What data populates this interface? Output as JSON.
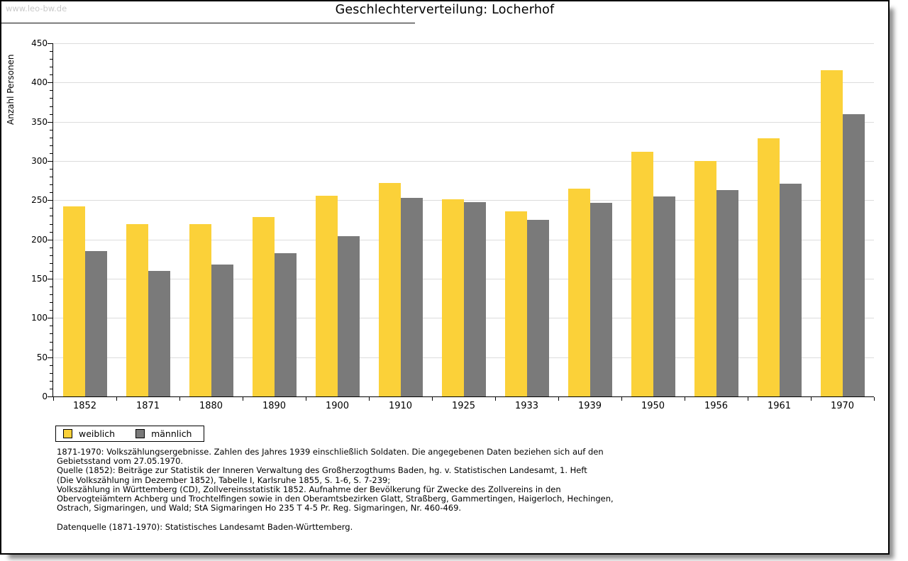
{
  "page": {
    "watermark": "www.leo-bw.de",
    "title": "Geschlechterverteilung: Locherhof"
  },
  "colors": {
    "weiblich": "#FBD139",
    "maennlich": "#7A7A7A",
    "gridline": "#DCDCDC",
    "axis": "#000000",
    "watermark": "#C9C9C9"
  },
  "legend": {
    "items": [
      {
        "label": "weiblich",
        "color": "#FBD139"
      },
      {
        "label": "männlich",
        "color": "#7A7A7A"
      }
    ]
  },
  "footnotes": [
    "1871-1970: Volkszählungsergebnisse. Zahlen des Jahres 1939 einschließlich Soldaten. Die angegebenen Daten beziehen sich auf den",
    "Gebietsstand vom 27.05.1970.",
    "Quelle (1852): Beiträge zur Statistik der Inneren Verwaltung des Großherzogthums Baden, hg. v. Statistischen Landesamt, 1. Heft",
    "(Die Volkszählung im Dezember 1852), Tabelle I, Karlsruhe 1855, S. 1-6, S. 7-239;",
    "Volkszählung in Württemberg (CD), Zollvereinsstatistik 1852. Aufnahme der Bevölkerung für Zwecke des Zollvereins in den",
    "Obervogteiämtern Achberg und Trochtelfingen sowie in den Oberamtsbezirken Glatt, Straßberg, Gammertingen, Haigerloch, Hechingen,",
    "Ostrach, Sigmaringen, und Wald; StA Sigmaringen Ho 235 T 4-5 Pr. Reg. Sigmaringen, Nr. 460-469.",
    "",
    "Datenquelle (1871-1970): Statistisches Landesamt Baden-Württemberg."
  ],
  "chart_data": {
    "type": "bar",
    "title": "Geschlechterverteilung: Locherhof",
    "xlabel": "",
    "ylabel": "Anzahl Personen",
    "ylim": [
      0,
      450
    ],
    "ytick_step": 50,
    "ytick_minor": 10,
    "grid": true,
    "legend_position": "bottom-left",
    "categories": [
      "1852",
      "1871",
      "1880",
      "1890",
      "1900",
      "1910",
      "1925",
      "1933",
      "1939",
      "1950",
      "1956",
      "1961",
      "1970"
    ],
    "series": [
      {
        "name": "weiblich",
        "color": "#FBD139",
        "values": [
          242,
          220,
          220,
          229,
          256,
          272,
          251,
          236,
          265,
          312,
          300,
          329,
          416
        ]
      },
      {
        "name": "männlich",
        "color": "#7A7A7A",
        "values": [
          185,
          160,
          168,
          183,
          204,
          253,
          248,
          225,
          247,
          255,
          263,
          271,
          360
        ]
      }
    ]
  }
}
